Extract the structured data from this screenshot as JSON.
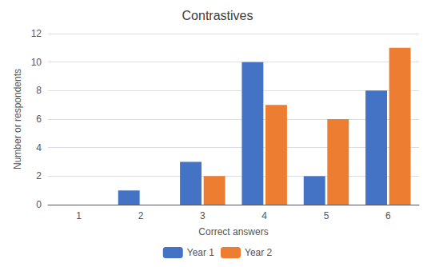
{
  "chart_data": {
    "type": "bar",
    "title": "Contrastives",
    "xlabel": "Correct answers",
    "ylabel": "Number or respondents",
    "categories": [
      1,
      2,
      3,
      4,
      5,
      6
    ],
    "series": [
      {
        "name": "Year 1",
        "color": "#4472C4",
        "values": [
          0,
          1,
          3,
          10,
          2,
          8
        ]
      },
      {
        "name": "Year 2",
        "color": "#ED7D31",
        "values": [
          0,
          0,
          2,
          7,
          6,
          11
        ]
      }
    ],
    "ylim": [
      0,
      12
    ],
    "yticks": [
      0,
      2,
      4,
      6,
      8,
      10,
      12
    ],
    "grid": true,
    "legend": "bottom"
  }
}
